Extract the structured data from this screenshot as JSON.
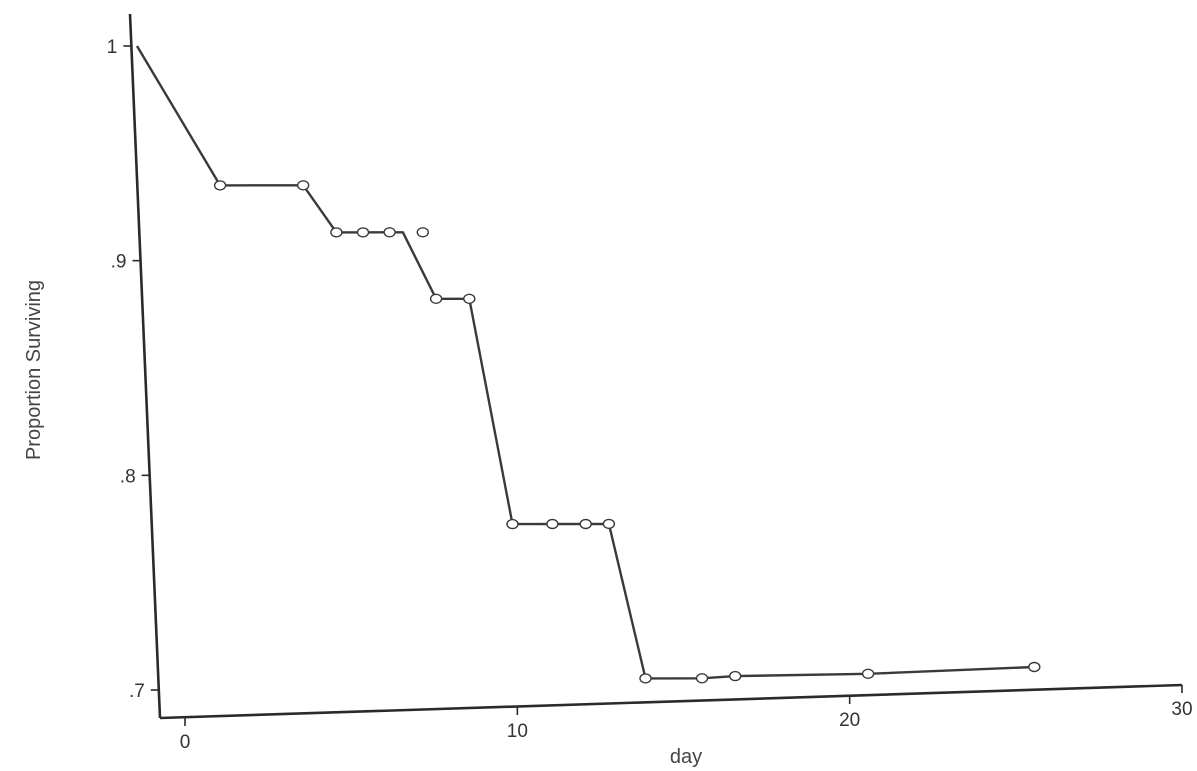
{
  "chart_data": {
    "type": "line",
    "title": "",
    "xlabel": "day",
    "ylabel": "Proportion Surviving",
    "xlim": [
      0,
      30
    ],
    "ylim": [
      0.7,
      1.0
    ],
    "x_ticks": [
      0,
      10,
      20,
      30
    ],
    "x_tick_labels": [
      "0",
      "10",
      "20",
      "30"
    ],
    "y_ticks": [
      0.7,
      0.8,
      0.9,
      1.0
    ],
    "y_tick_labels": [
      ".7",
      ".8",
      ".9",
      "1"
    ],
    "grid": false,
    "legend": "none",
    "series": [
      {
        "line_points": [
          [
            0,
            1.0
          ],
          [
            2.5,
            0.935
          ],
          [
            5,
            0.935
          ],
          [
            6,
            0.913
          ],
          [
            8,
            0.913
          ],
          [
            9,
            0.882
          ],
          [
            10,
            0.882
          ],
          [
            11.3,
            0.777
          ],
          [
            14.2,
            0.777
          ],
          [
            15.3,
            0.705
          ],
          [
            17,
            0.705
          ],
          [
            18,
            0.706
          ],
          [
            22,
            0.707
          ],
          [
            27,
            0.71
          ]
        ],
        "markers": [
          [
            2.5,
            0.935
          ],
          [
            5,
            0.935
          ],
          [
            6,
            0.913
          ],
          [
            6.8,
            0.913
          ],
          [
            7.6,
            0.913
          ],
          [
            8.6,
            0.913
          ],
          [
            9,
            0.882
          ],
          [
            10,
            0.882
          ],
          [
            11.3,
            0.777
          ],
          [
            12.5,
            0.777
          ],
          [
            13.5,
            0.777
          ],
          [
            14.2,
            0.777
          ],
          [
            15.3,
            0.705
          ],
          [
            17,
            0.705
          ],
          [
            18,
            0.706
          ],
          [
            22,
            0.707
          ],
          [
            27,
            0.71
          ]
        ]
      }
    ]
  }
}
